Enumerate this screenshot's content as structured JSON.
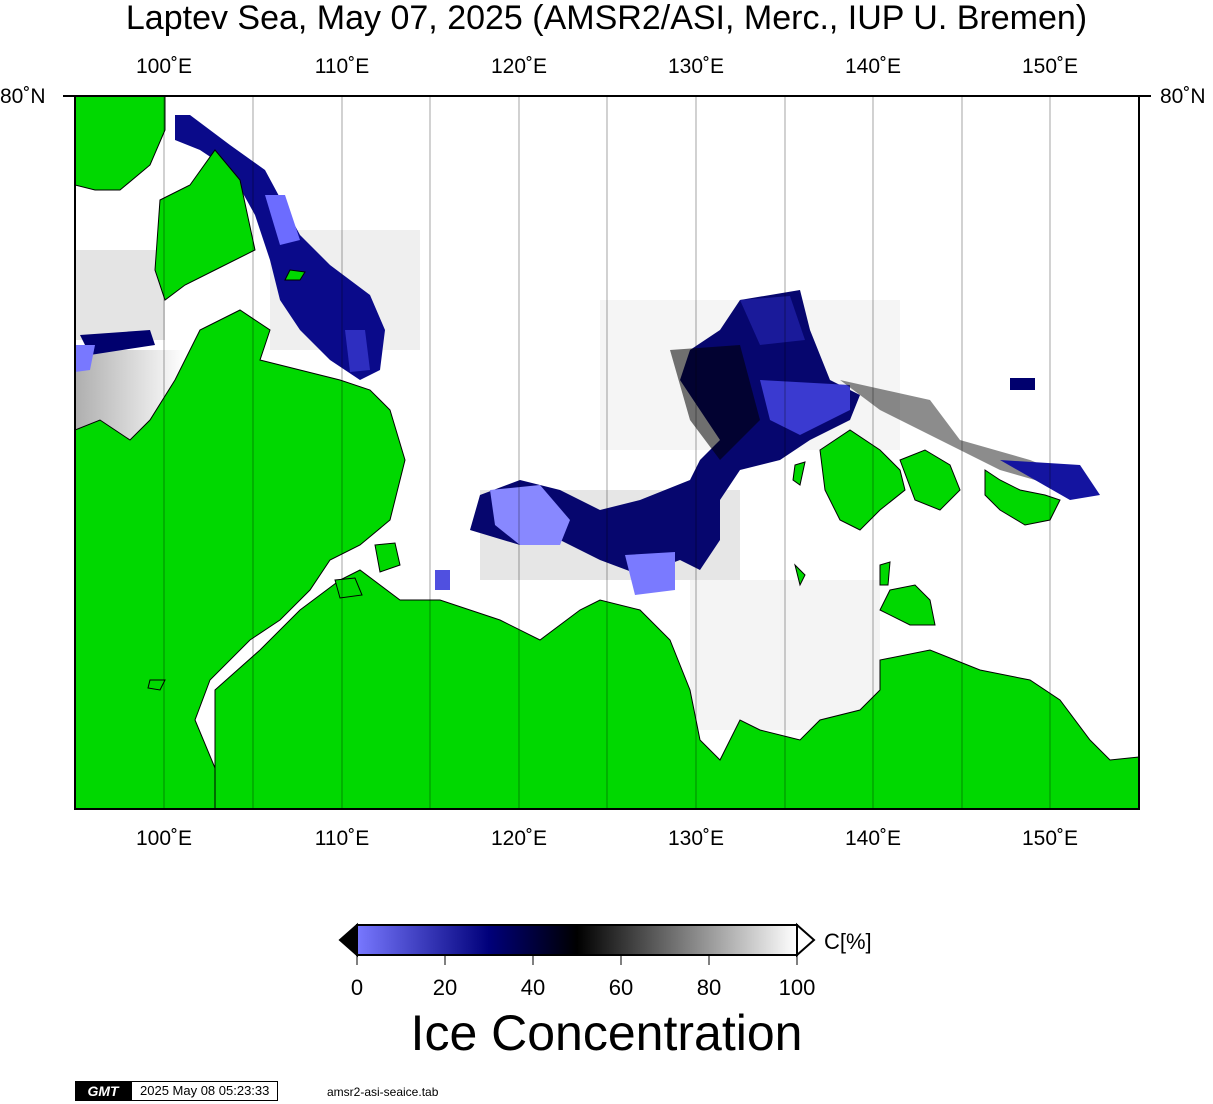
{
  "title": "Laptev Sea, May 07, 2025 (AMSR2/ASI, Merc., IUP U. Bremen)",
  "map": {
    "projection": "Mercator",
    "lon_range": [
      95,
      155
    ],
    "lat_top_label": "80˚N",
    "lon_ticks": [
      {
        "lon": 100,
        "label": "100˚E"
      },
      {
        "lon": 110,
        "label": "110˚E"
      },
      {
        "lon": 120,
        "label": "120˚E"
      },
      {
        "lon": 130,
        "label": "130˚E"
      },
      {
        "lon": 140,
        "label": "140˚E"
      },
      {
        "lon": 150,
        "label": "150˚E"
      }
    ],
    "colors": {
      "land": "#00d800",
      "ocean_full_ice": "#ffffff",
      "low_conc": "#7878ff",
      "mid_conc": "#000080",
      "gridline": "#000000"
    }
  },
  "colorbar": {
    "unit": "C[%]",
    "title": "Ice Concentration",
    "ticks": [
      "0",
      "20",
      "40",
      "60",
      "80",
      "100"
    ],
    "stops": [
      {
        "value": 0,
        "color": "#7878ff"
      },
      {
        "value": 30,
        "color": "#00007a"
      },
      {
        "value": 50,
        "color": "#000000"
      },
      {
        "value": 100,
        "color": "#ffffff"
      }
    ]
  },
  "footer": {
    "logo": "GMT",
    "timestamp": "2025 May 08 05:23:33",
    "file": "amsr2-asi-seaice.tab"
  }
}
